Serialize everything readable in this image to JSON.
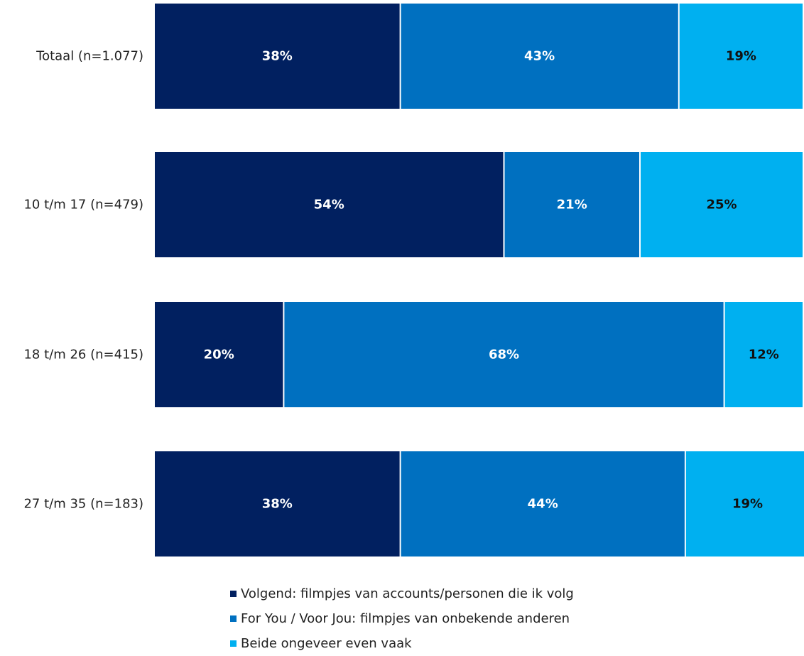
{
  "chart_data": {
    "type": "bar",
    "orientation": "horizontal",
    "stacked": true,
    "percent": true,
    "categories": [
      "Totaal (n=1.077)",
      "10 t/m 17  (n=479)",
      "18 t/m 26  (n=415)",
      "27 t/m 35  (n=183)"
    ],
    "series": [
      {
        "name": "Volgend: filmpjes van accounts/personen die ik volg",
        "color": "#012060",
        "label_color": "#ffffff",
        "values": [
          38,
          54,
          20,
          38
        ]
      },
      {
        "name": "For You / Voor Jou: filmpjes van onbekende anderen",
        "color": "#0070c0",
        "label_color": "#ffffff",
        "values": [
          43,
          21,
          68,
          44
        ]
      },
      {
        "name": "Beide ongeveer even vaak",
        "color": "#00b0f0",
        "label_color": "#111111",
        "values": [
          19,
          25,
          12,
          19
        ]
      }
    ],
    "data_labels": [
      [
        "38%",
        "43%",
        "19%"
      ],
      [
        "54%",
        "21%",
        "25%"
      ],
      [
        "20%",
        "68%",
        "12%"
      ],
      [
        "38%",
        "44%",
        "19%"
      ]
    ],
    "legend_position": "bottom",
    "grid": false,
    "xlim": [
      0,
      100
    ]
  }
}
